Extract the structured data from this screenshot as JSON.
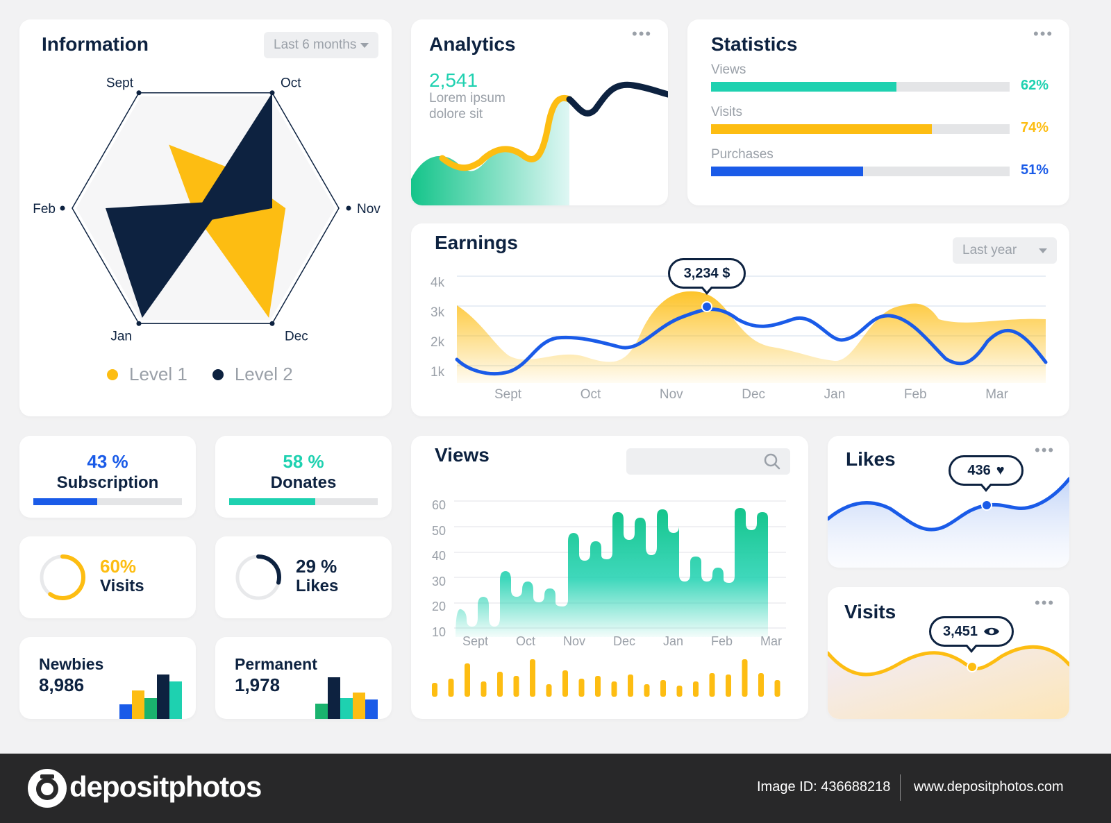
{
  "information": {
    "title": "Information",
    "dropdown": "Last 6 months",
    "radar": {
      "axes": [
        "Sept",
        "Oct",
        "Nov",
        "Dec",
        "Jan",
        "Feb"
      ],
      "level1": [
        0.55,
        0.35,
        0.6,
        0.95,
        0.1,
        0.1
      ],
      "level2": [
        0.05,
        1.0,
        0.5,
        0.1,
        0.95,
        0.75
      ]
    },
    "legend": [
      {
        "label": "Level 1",
        "color": "#fdbd12"
      },
      {
        "label": "Level 2",
        "color": "#0d2240"
      }
    ]
  },
  "analytics": {
    "title": "Analytics",
    "value": "2,541",
    "caption": "Lorem ipsum dolore sit"
  },
  "statistics": {
    "title": "Statistics",
    "rows": [
      {
        "label": "Views",
        "value": 62,
        "pct": "62%",
        "color": "#1ed1b0"
      },
      {
        "label": "Visits",
        "value": 74,
        "pct": "74%",
        "color": "#fdbd12"
      },
      {
        "label": "Purchases",
        "value": 51,
        "pct": "51%",
        "color": "#1a5be8"
      }
    ]
  },
  "earnings": {
    "title": "Earnings",
    "dropdown": "Last year",
    "tooltip": "3,234 $",
    "y_ticks": [
      "4k",
      "3k",
      "2k",
      "1k"
    ],
    "x_labels": [
      "Sept",
      "Oct",
      "Nov",
      "Dec",
      "Jan",
      "Feb",
      "Mar"
    ]
  },
  "views": {
    "title": "Views",
    "search_placeholder": "",
    "y_ticks": [
      "60",
      "50",
      "40",
      "30",
      "20",
      "10"
    ],
    "x_labels": [
      "Sept",
      "Oct",
      "Nov",
      "Dec",
      "Jan",
      "Feb",
      "Mar"
    ]
  },
  "likes": {
    "title": "Likes",
    "tooltip": "436"
  },
  "visits_chart": {
    "title": "Visits",
    "tooltip": "3,451"
  },
  "subscription": {
    "pct": "43 %",
    "label": "Subscription",
    "value": 43,
    "color": "#1a5be8"
  },
  "donates": {
    "pct": "58 %",
    "label": "Donates",
    "value": 58,
    "color": "#1ed1b0"
  },
  "visits_ring": {
    "pct": "60%",
    "label": "Visits",
    "value": 60,
    "color": "#fdbd12"
  },
  "likes_ring": {
    "pct": "29 %",
    "label": "Likes",
    "value": 29,
    "color": "#0d2240"
  },
  "newbies": {
    "label": "Newbies",
    "value": "8,986"
  },
  "permanent": {
    "label": "Permanent",
    "value": "1,978"
  },
  "footer": {
    "brand": "depositphotos",
    "image_id": "Image ID: 436688218",
    "url": "www.depositphotos.com"
  },
  "colors": {
    "navy": "#0d2240",
    "yellow": "#fdbd12",
    "teal": "#1ed1b0",
    "blue": "#1a5be8"
  }
}
